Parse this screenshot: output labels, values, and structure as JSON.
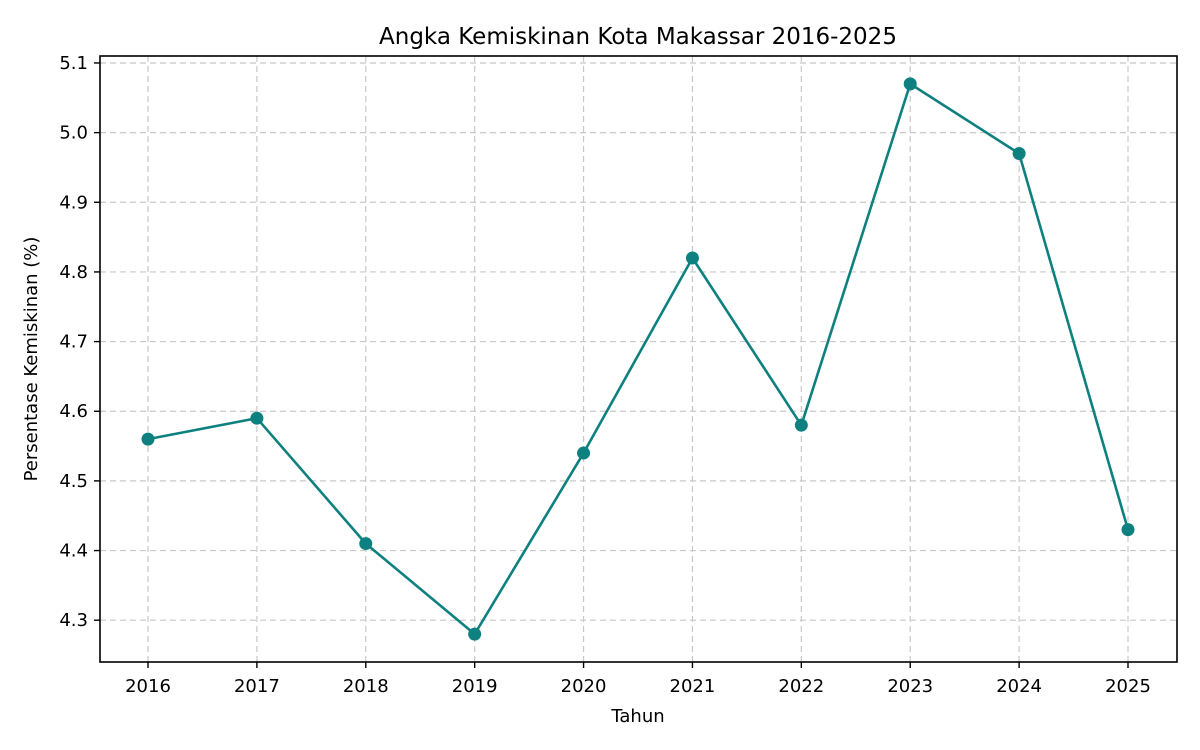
{
  "chart_data": {
    "type": "line",
    "title": "Angka Kemiskinan Kota Makassar 2016-2025",
    "xlabel": "Tahun",
    "ylabel": "Persentase Kemiskinan (%)",
    "x": [
      "2016",
      "2017",
      "2018",
      "2019",
      "2020",
      "2021",
      "2022",
      "2023",
      "2024",
      "2025"
    ],
    "series": [
      {
        "values": [
          4.56,
          4.59,
          4.41,
          4.28,
          4.54,
          4.82,
          4.58,
          5.07,
          4.97,
          4.43
        ],
        "color": "#0f8080",
        "marker": "circle"
      }
    ],
    "ylim": [
      4.24,
      5.11
    ],
    "yticks": [
      "4.3",
      "4.4",
      "4.5",
      "4.6",
      "4.7",
      "4.8",
      "4.9",
      "5.0",
      "5.1"
    ],
    "grid": true
  }
}
